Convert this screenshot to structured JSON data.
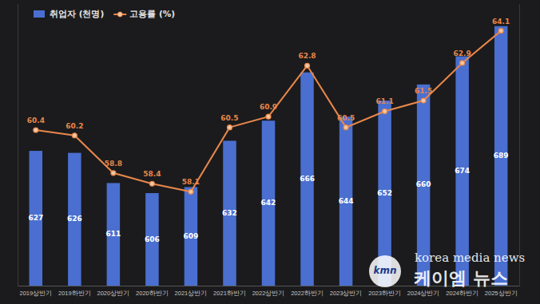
{
  "chart_data": {
    "type": "bar",
    "categories": [
      "2019상반기",
      "2019하반기",
      "2020상반기",
      "2020하반기",
      "2021상반기",
      "2021하반기",
      "2022상반기",
      "2022하반기",
      "2023상반기",
      "2023하반기",
      "2024상반기",
      "2024하반기",
      "2025상반기"
    ],
    "series": [
      {
        "name": "취업자 (천명)",
        "type": "bar",
        "color": "#4a6fd0",
        "values": [
          627,
          626,
          611,
          606,
          609,
          632,
          642,
          666,
          644,
          652,
          660,
          674,
          689
        ]
      },
      {
        "name": "고용률 (%)",
        "type": "line",
        "axis": "y2",
        "color": "#e8874a",
        "marker": "circle",
        "values": [
          60.4,
          60.2,
          58.8,
          58.4,
          58.1,
          60.5,
          60.9,
          62.8,
          60.5,
          61.1,
          61.5,
          62.9,
          64.1
        ]
      }
    ],
    "ylim": [
      560,
      700
    ],
    "y2lim": [
      54.6,
      65.1
    ],
    "legend": "upper left",
    "data_labels": true,
    "tick_labels": "x",
    "grid": false,
    "annotations": [
      "kmn",
      "korea media news",
      "케이엠 뉴스"
    ]
  }
}
